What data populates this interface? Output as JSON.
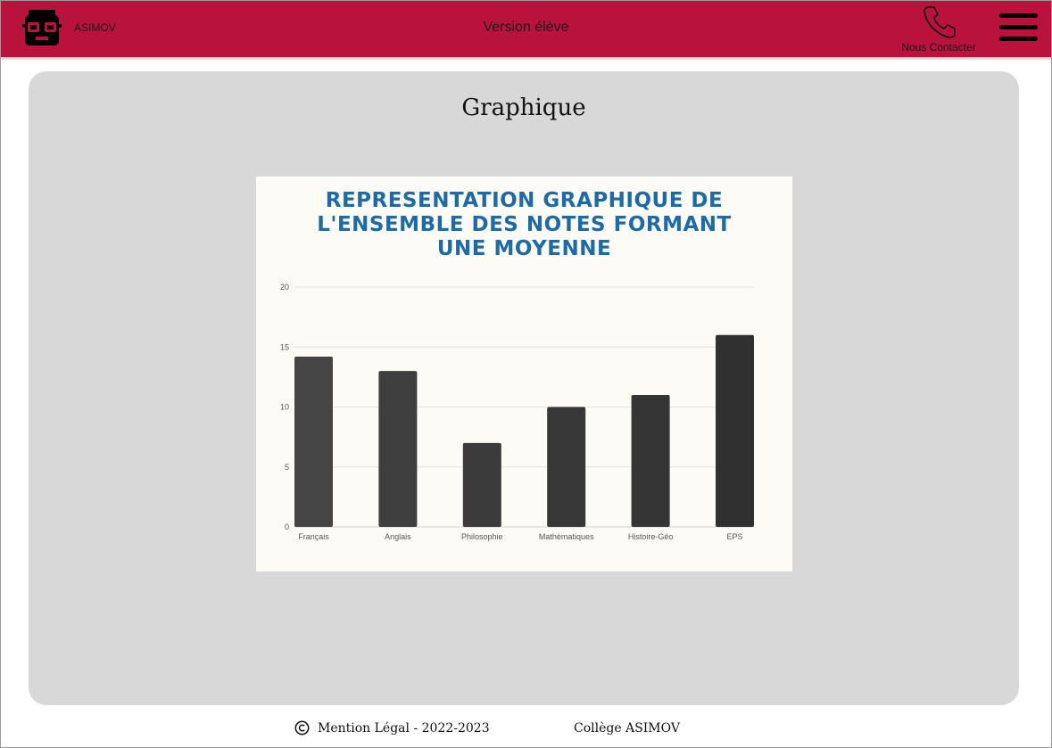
{
  "header": {
    "brand": "ASIMOV",
    "logo_icon": "nerd-face-icon",
    "version_label": "Version élève",
    "contact_label": "Nous Contacter",
    "contact_icon": "phone-icon",
    "menu_icon": "hamburger-menu-icon",
    "background_color": "#b8123d"
  },
  "main": {
    "title": "Graphique"
  },
  "chart_data": {
    "type": "bar",
    "title_lines": [
      "REPRESENTATION GRAPHIQUE DE",
      "L'ENSEMBLE DES NOTES FORMANT",
      "UNE MOYENNE"
    ],
    "categories": [
      "Français",
      "Anglais",
      "Philosophie",
      "Mathématiques",
      "Histoire-Géo",
      "EPS"
    ],
    "values": [
      14.2,
      13,
      7,
      10,
      11,
      16
    ],
    "ylim": [
      0,
      20
    ],
    "yticks": [
      0,
      5,
      10,
      15,
      20
    ],
    "grid": true,
    "bar_colors": [
      "#454545",
      "#3f3f3f",
      "#3b3b3b",
      "#383838",
      "#353535",
      "#303030"
    ],
    "title_color": "#1c6aa8"
  },
  "footer": {
    "copyright_icon": "copyright-icon",
    "legal": "Mention Légal - 2022-2023",
    "college": "Collège ASIMOV"
  }
}
